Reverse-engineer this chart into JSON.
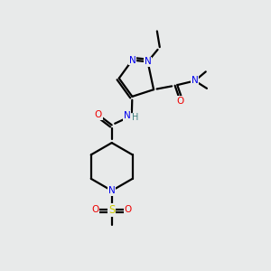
{
  "bg_color": "#e8eaea",
  "atom_colors": {
    "N": "#0000ee",
    "O": "#ee0000",
    "S": "#cccc00",
    "H": "#408080"
  },
  "figsize": [
    3.0,
    3.0
  ],
  "dpi": 100
}
